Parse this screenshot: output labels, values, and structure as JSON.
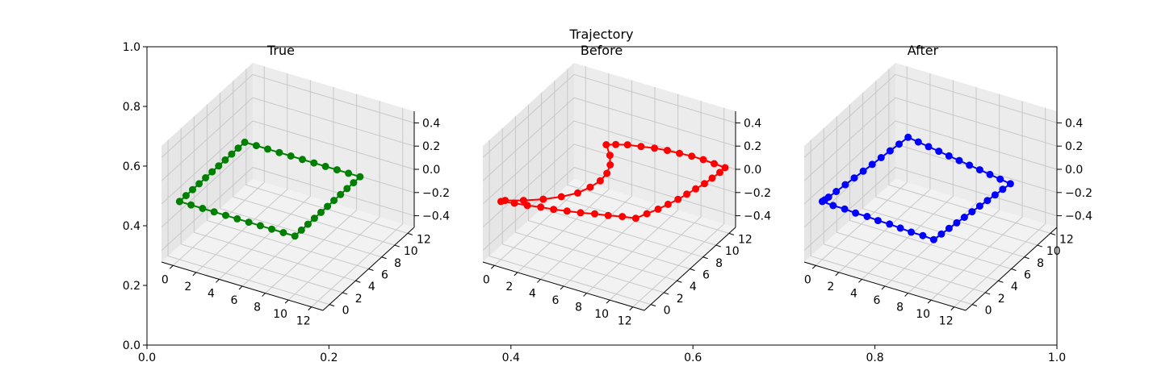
{
  "figure_title": "Trajectory",
  "chart_data": [
    {
      "type": "scatter3d-line",
      "title": "True",
      "color": "#008000",
      "x_ticks": [
        "0",
        "2",
        "4",
        "6",
        "8",
        "10",
        "12"
      ],
      "y_ticks": [
        "0",
        "2",
        "4",
        "6",
        "8",
        "10",
        "12"
      ],
      "z_ticks": [
        "−0.4",
        "−0.2",
        "0.0",
        "0.2",
        "0.4"
      ],
      "xlim": [
        -1,
        13
      ],
      "ylim": [
        -1,
        13
      ],
      "zlim": [
        -0.5,
        0.5
      ],
      "points": [
        {
          "x": 0,
          "y": 0,
          "z": 0
        },
        {
          "x": 1,
          "y": 0,
          "z": 0
        },
        {
          "x": 2,
          "y": 0,
          "z": 0
        },
        {
          "x": 3,
          "y": 0,
          "z": 0
        },
        {
          "x": 4,
          "y": 0,
          "z": 0
        },
        {
          "x": 5,
          "y": 0,
          "z": 0
        },
        {
          "x": 6,
          "y": 0,
          "z": 0
        },
        {
          "x": 7,
          "y": 0,
          "z": 0
        },
        {
          "x": 8,
          "y": 0,
          "z": 0
        },
        {
          "x": 9,
          "y": 0,
          "z": 0
        },
        {
          "x": 10,
          "y": 0,
          "z": 0
        },
        {
          "x": 10,
          "y": 1,
          "z": 0
        },
        {
          "x": 10,
          "y": 2,
          "z": 0
        },
        {
          "x": 10,
          "y": 3,
          "z": 0
        },
        {
          "x": 10,
          "y": 4,
          "z": 0
        },
        {
          "x": 10,
          "y": 5,
          "z": 0
        },
        {
          "x": 10,
          "y": 6,
          "z": 0
        },
        {
          "x": 10,
          "y": 7,
          "z": 0
        },
        {
          "x": 10,
          "y": 8,
          "z": 0
        },
        {
          "x": 10,
          "y": 9,
          "z": 0
        },
        {
          "x": 10,
          "y": 10,
          "z": 0
        },
        {
          "x": 9,
          "y": 10,
          "z": 0
        },
        {
          "x": 8,
          "y": 10,
          "z": 0
        },
        {
          "x": 7,
          "y": 10,
          "z": 0
        },
        {
          "x": 6,
          "y": 10,
          "z": 0
        },
        {
          "x": 5,
          "y": 10,
          "z": 0
        },
        {
          "x": 4,
          "y": 10,
          "z": 0
        },
        {
          "x": 3,
          "y": 10,
          "z": 0
        },
        {
          "x": 2,
          "y": 10,
          "z": 0
        },
        {
          "x": 1,
          "y": 10,
          "z": 0
        },
        {
          "x": 0,
          "y": 10,
          "z": 0
        },
        {
          "x": 0,
          "y": 9,
          "z": 0
        },
        {
          "x": 0,
          "y": 8,
          "z": 0
        },
        {
          "x": 0,
          "y": 7,
          "z": 0
        },
        {
          "x": 0,
          "y": 6,
          "z": 0
        },
        {
          "x": 0,
          "y": 5,
          "z": 0
        },
        {
          "x": 0,
          "y": 4,
          "z": 0
        },
        {
          "x": 0,
          "y": 3,
          "z": 0
        },
        {
          "x": 0,
          "y": 2,
          "z": 0
        },
        {
          "x": 0,
          "y": 1,
          "z": 0
        },
        {
          "x": 0,
          "y": 0,
          "z": 0
        }
      ]
    },
    {
      "type": "scatter3d-line",
      "title": "Before",
      "color": "#ff0000",
      "x_ticks": [
        "0",
        "2",
        "4",
        "6",
        "8",
        "10",
        "12"
      ],
      "y_ticks": [
        "0",
        "2",
        "4",
        "6",
        "8",
        "10",
        "12"
      ],
      "z_ticks": [
        "−0.4",
        "−0.2",
        "0.0",
        "0.2",
        "0.4"
      ],
      "xlim": [
        -1,
        13
      ],
      "ylim": [
        -1,
        13
      ],
      "zlim": [
        -0.5,
        0.5
      ],
      "points": [
        {
          "x": 0,
          "y": 0,
          "z": 0
        },
        {
          "x": 1,
          "y": 0.3,
          "z": 0
        },
        {
          "x": 2,
          "y": 0.5,
          "z": 0
        },
        {
          "x": 3,
          "y": 0.8,
          "z": 0
        },
        {
          "x": 4,
          "y": 1.0,
          "z": 0
        },
        {
          "x": 5,
          "y": 1.3,
          "z": 0
        },
        {
          "x": 6,
          "y": 1.6,
          "z": 0
        },
        {
          "x": 7,
          "y": 2.0,
          "z": 0
        },
        {
          "x": 8,
          "y": 2.3,
          "z": 0
        },
        {
          "x": 9,
          "y": 2.7,
          "z": 0
        },
        {
          "x": 10,
          "y": 3.0,
          "z": 0
        },
        {
          "x": 10.4,
          "y": 4,
          "z": 0
        },
        {
          "x": 10.8,
          "y": 5,
          "z": 0
        },
        {
          "x": 11.1,
          "y": 6,
          "z": 0
        },
        {
          "x": 11.4,
          "y": 7,
          "z": 0
        },
        {
          "x": 11.6,
          "y": 8,
          "z": 0
        },
        {
          "x": 11.8,
          "y": 9,
          "z": 0
        },
        {
          "x": 12.0,
          "y": 10,
          "z": 0
        },
        {
          "x": 12.1,
          "y": 11,
          "z": 0
        },
        {
          "x": 12.2,
          "y": 12,
          "z": 0
        },
        {
          "x": 12.2,
          "y": 12.8,
          "z": 0
        },
        {
          "x": 11.2,
          "y": 12.9,
          "z": 0
        },
        {
          "x": 10.2,
          "y": 13.0,
          "z": 0
        },
        {
          "x": 9.2,
          "y": 13.0,
          "z": 0
        },
        {
          "x": 8.2,
          "y": 12.9,
          "z": 0
        },
        {
          "x": 7.2,
          "y": 12.8,
          "z": 0
        },
        {
          "x": 6.2,
          "y": 12.6,
          "z": 0
        },
        {
          "x": 5.2,
          "y": 12.3,
          "z": 0
        },
        {
          "x": 4.2,
          "y": 12.0,
          "z": 0
        },
        {
          "x": 3.4,
          "y": 11.6,
          "z": 0
        },
        {
          "x": 2.8,
          "y": 11.2,
          "z": 0
        },
        {
          "x": 3.8,
          "y": 10.0,
          "z": 0
        },
        {
          "x": 4.5,
          "y": 8.8,
          "z": 0
        },
        {
          "x": 4.9,
          "y": 7.6,
          "z": 0
        },
        {
          "x": 5.0,
          "y": 6.4,
          "z": 0
        },
        {
          "x": 4.8,
          "y": 5.2,
          "z": 0
        },
        {
          "x": 4.4,
          "y": 4.0,
          "z": 0
        },
        {
          "x": 3.6,
          "y": 2.9,
          "z": 0
        },
        {
          "x": 2.6,
          "y": 1.9,
          "z": 0
        },
        {
          "x": 1.4,
          "y": 1.0,
          "z": 0
        },
        {
          "x": 0.2,
          "y": 0.3,
          "z": 0
        }
      ]
    },
    {
      "type": "scatter3d-line",
      "title": "After",
      "color": "#0000ff",
      "x_ticks": [
        "0",
        "2",
        "4",
        "6",
        "8",
        "10",
        "12"
      ],
      "y_ticks": [
        "0",
        "2",
        "4",
        "6",
        "8",
        "10",
        "12"
      ],
      "z_ticks": [
        "−0.4",
        "−0.2",
        "0.0",
        "0.2",
        "0.4"
      ],
      "xlim": [
        -1,
        13
      ],
      "ylim": [
        -1,
        13
      ],
      "zlim": [
        -0.5,
        0.5
      ],
      "points": [
        {
          "x": 0,
          "y": 0,
          "z": 0
        },
        {
          "x": 1,
          "y": -0.1,
          "z": 0
        },
        {
          "x": 2,
          "y": -0.1,
          "z": 0
        },
        {
          "x": 3,
          "y": -0.2,
          "z": 0
        },
        {
          "x": 4,
          "y": -0.2,
          "z": 0
        },
        {
          "x": 5,
          "y": -0.3,
          "z": 0
        },
        {
          "x": 6,
          "y": -0.3,
          "z": 0
        },
        {
          "x": 7,
          "y": -0.4,
          "z": 0
        },
        {
          "x": 8,
          "y": -0.5,
          "z": 0
        },
        {
          "x": 9,
          "y": -0.5,
          "z": 0
        },
        {
          "x": 10,
          "y": -0.6,
          "z": 0
        },
        {
          "x": 10.1,
          "y": 0.4,
          "z": 0
        },
        {
          "x": 10.2,
          "y": 1.4,
          "z": 0
        },
        {
          "x": 10.3,
          "y": 2.4,
          "z": 0
        },
        {
          "x": 10.4,
          "y": 3.4,
          "z": 0
        },
        {
          "x": 10.5,
          "y": 4.4,
          "z": 0
        },
        {
          "x": 10.6,
          "y": 5.4,
          "z": 0
        },
        {
          "x": 10.7,
          "y": 6.4,
          "z": 0
        },
        {
          "x": 10.8,
          "y": 7.4,
          "z": 0
        },
        {
          "x": 10.9,
          "y": 8.4,
          "z": 0
        },
        {
          "x": 11.0,
          "y": 9.4,
          "z": 0
        },
        {
          "x": 10.0,
          "y": 9.6,
          "z": 0
        },
        {
          "x": 9.0,
          "y": 9.8,
          "z": 0
        },
        {
          "x": 8.0,
          "y": 10.0,
          "z": 0
        },
        {
          "x": 7.0,
          "y": 10.2,
          "z": 0
        },
        {
          "x": 6.0,
          "y": 10.4,
          "z": 0
        },
        {
          "x": 5.0,
          "y": 10.6,
          "z": 0
        },
        {
          "x": 4.0,
          "y": 10.8,
          "z": 0
        },
        {
          "x": 3.0,
          "y": 11.0,
          "z": 0
        },
        {
          "x": 2.0,
          "y": 11.2,
          "z": 0
        },
        {
          "x": 1.0,
          "y": 11.4,
          "z": 0
        },
        {
          "x": 0.9,
          "y": 10.2,
          "z": 0
        },
        {
          "x": 0.8,
          "y": 9.0,
          "z": 0
        },
        {
          "x": 0.7,
          "y": 7.8,
          "z": 0
        },
        {
          "x": 0.6,
          "y": 6.6,
          "z": 0
        },
        {
          "x": 0.5,
          "y": 5.4,
          "z": 0
        },
        {
          "x": 0.4,
          "y": 4.2,
          "z": 0
        },
        {
          "x": 0.3,
          "y": 3.0,
          "z": 0
        },
        {
          "x": 0.2,
          "y": 1.8,
          "z": 0
        },
        {
          "x": 0.1,
          "y": 0.8,
          "z": 0
        },
        {
          "x": 0.05,
          "y": 0.3,
          "z": 0
        }
      ]
    }
  ],
  "outer_axes": {
    "x_ticks": [
      "0.0",
      "0.2",
      "0.4",
      "0.6",
      "0.8",
      "1.0"
    ],
    "y_ticks": [
      "0.0",
      "0.2",
      "0.4",
      "0.6",
      "0.8",
      "1.0"
    ]
  }
}
